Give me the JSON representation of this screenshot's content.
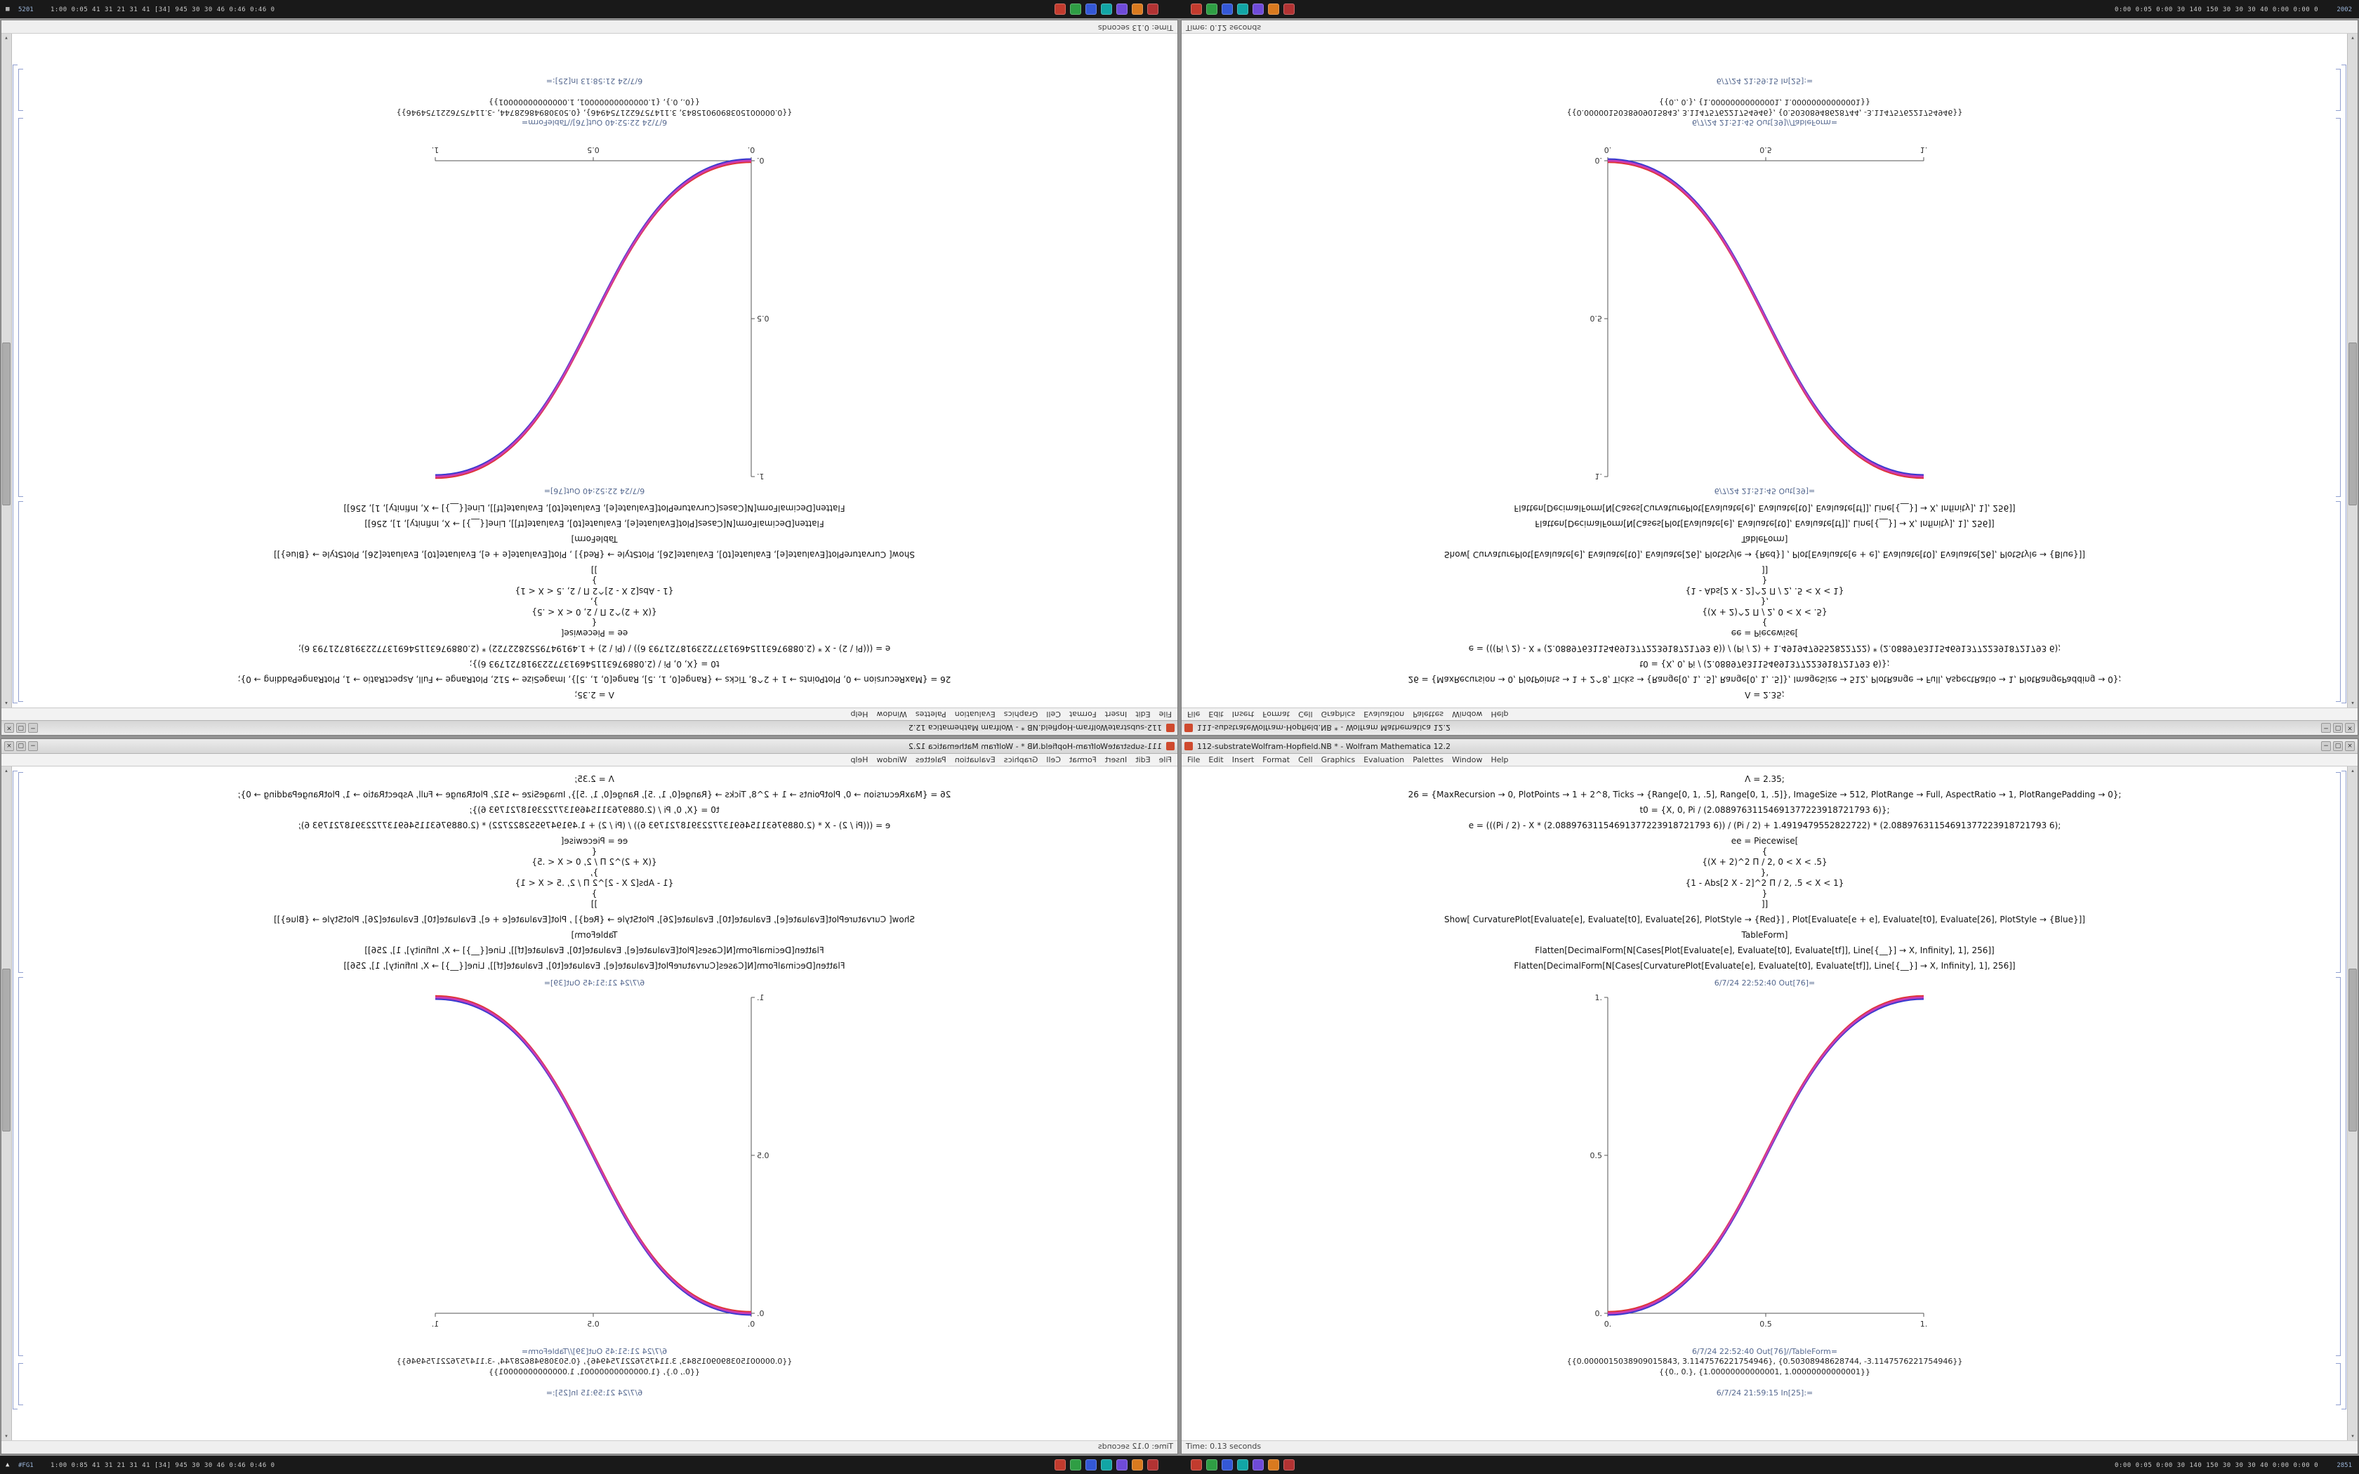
{
  "desktop": {
    "top_bar": {
      "left_icon_glyph": "▦",
      "left_badge": "5201",
      "left_text": "1:00 0:05 41 31 21 31 41 [34] 945 30 30 46 0:46 0:46 0",
      "tray_icons": [
        "#c23b2e",
        "#2f9e44",
        "#3458d6",
        "#12a5a5",
        "#6f4bd8",
        "#d97a1f",
        "#b23333"
      ],
      "right_text": "0:00 0:05 0:00 30 140 150 30 30 30 40 0:00 0:00 0",
      "right_badge": "2002"
    },
    "bottom_bar": {
      "left_icon_glyph": "▲",
      "left_badge": "#FG1",
      "left_text": "1:00 0:85 41 31 21 31 41 [34] 945 30 30 46 0:46 0:46 0",
      "tray_icons": [
        "#c23b2e",
        "#2f9e44",
        "#3458d6",
        "#12a5a5",
        "#6f4bd8",
        "#d97a1f",
        "#b23333"
      ],
      "right_text": "0:00 0:05 0:00 30 140 150 30 30 30 40 0:00 0:00 0",
      "right_badge": "2851"
    }
  },
  "window": {
    "menu_items": [
      "File",
      "Edit",
      "Insert",
      "Format",
      "Cell",
      "Graphics",
      "Evaluation",
      "Palettes",
      "Window",
      "Help"
    ],
    "window_buttons": [
      "−",
      "▢",
      "×"
    ],
    "code_lines": [
      "Λ = 2.35;",
      "26 = {MaxRecursion → 0, PlotPoints → 1 + 2^8, Ticks → {Range[0, 1, .5], Range[0, 1, .5]}, ImageSize → 512, PlotRange → Full, AspectRatio → 1, PlotRangePadding → 0};",
      "t0 = {X, 0, Pi / (2.08897631154691377223918721793 6)};",
      "e = (((Pi / 2) - X * (2.08897631154691377223918721793 6)) / (Pi / 2) + 1.4919479552822722) * (2.08897631154691377223918721793 6);",
      "ee = Piecewise[",
      "{",
      "{(X + 2)^2 Π / 2, 0 < X < .5}",
      "},",
      "{1 - Abs[2 X - 2]^2 Π / 2, .5 < X < 1}",
      "}",
      "]]",
      "Show[   CurvaturePlot[Evaluate[e], Evaluate[t0], Evaluate[26], PlotStyle → {Red}]   ,   Plot[Evaluate[e + e], Evaluate[t0], Evaluate[26], PlotStyle → {Blue}]]",
      "TableForm]",
      "Flatten[DecimalForm[N[Cases[Plot[Evaluate[e], Evaluate[t0], Evaluate[tf]], Line[{__}] → X, Infinity], 1], 256]]",
      "Flatten[DecimalForm[N[Cases[CurvaturePlot[Evaluate[e], Evaluate[t0], Evaluate[tf]], Line[{__}] → X, Infinity], 1], 256]]"
    ],
    "cell_starts": [
      0,
      1,
      2,
      3,
      4,
      11,
      12,
      13,
      14
    ],
    "output_lines": [
      "{{0.0000015038909015843, 3.1147576221754946}, {0.50308948628744, -3.1147576221754946}}",
      "{{0., 0.}, {1.00000000000001, 1.00000000000001}}"
    ],
    "plot": {
      "type": "line",
      "x_ticks": [
        "0.",
        "0.5",
        "1."
      ],
      "y_ticks": [
        "1.",
        "0.5",
        "0."
      ],
      "x_range": [
        0,
        1
      ],
      "y_range": [
        0,
        1
      ],
      "curve_shape": "smoothstep rising from (0,0) to (1,1)",
      "curve_colors": [
        "#e03434",
        "#3a3ad0",
        "#c83cb4"
      ],
      "series": [
        {
          "name": "CurvaturePlot (Red)"
        },
        {
          "name": "Plot (Blue)"
        }
      ]
    }
  },
  "sessions": {
    "tl": {
      "title": "112-substrateWolfram-Hopfield.NB * - Wolfram Mathematica 12.2",
      "out_label": "6/7/24 22:52:40 Out[76]=",
      "table_label": "6/7/24 22:52:40 Out[76]//TableForm=",
      "footer_label": "6/7/24 21:58:13 In[25]:=",
      "status": "Time: 0.13 seconds"
    },
    "tr": {
      "title": "111-substrateWolfram-Hopfield.NB * - Wolfram Mathematica 12.2",
      "out_label": "6/7/24 21:51:45 Out[39]=",
      "table_label": "6/7/24 21:51:45 Out[39]//TableForm=",
      "footer_label": "6/7/24 21:59:15 In[25]:=",
      "status": "Time: 0.12 seconds"
    },
    "bl": {
      "title": "111-substrateWolfram-Hopfield.NB * - Wolfram Mathematica 12.2",
      "out_label": "6/7/24 21:51:45 Out[39]=",
      "table_label": "6/7/24 21:51:45 Out[39]//TableForm=",
      "footer_label": "6/7/24 21:59:15 In[25]:=",
      "status": "Time: 0.12 seconds"
    },
    "br": {
      "title": "112-substrateWolfram-Hopfield.NB * - Wolfram Mathematica 12.2",
      "out_label": "6/7/24 22:52:40 Out[76]=",
      "table_label": "6/7/24 22:52:40 Out[76]//TableForm=",
      "footer_label": "6/7/24 21:59:15 In[25]:=",
      "status": "Time: 0.13 seconds"
    }
  },
  "quadrants": [
    {
      "id": "tl",
      "orientation": "rotated-180",
      "session": "tl"
    },
    {
      "id": "tr",
      "orientation": "flipped-vertical",
      "session": "tr"
    },
    {
      "id": "bl",
      "orientation": "mirrored-horizontal",
      "session": "bl"
    },
    {
      "id": "br",
      "orientation": "normal",
      "session": "br"
    }
  ]
}
